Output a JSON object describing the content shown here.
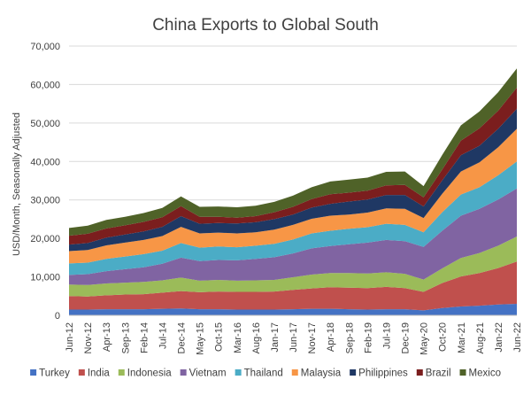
{
  "chart_data": {
    "type": "area",
    "stacked": true,
    "title": "China Exports to Global South",
    "xlabel": "",
    "ylabel": "USD/Month, Seasonally Adjusted",
    "ylim": [
      0,
      70000
    ],
    "yticks": [
      0,
      10000,
      20000,
      30000,
      40000,
      50000,
      60000,
      70000
    ],
    "ytick_labels": [
      "0",
      "10,000",
      "20,000",
      "30,000",
      "40,000",
      "50,000",
      "60,000",
      "70,000"
    ],
    "xtick_labels": [
      "Jun-12",
      "Nov-12",
      "Apr-13",
      "Sep-13",
      "Feb-14",
      "Jul-14",
      "Dec-14",
      "May-15",
      "Oct-15",
      "Mar-16",
      "Aug-16",
      "Jan-17",
      "Jun-17",
      "Nov-17",
      "Apr-18",
      "Sep-18",
      "Feb-19",
      "Jul-19",
      "Dec-19",
      "May-20",
      "Oct-20",
      "Mar-21",
      "Aug-21",
      "Jan-22",
      "Jun-22"
    ],
    "x": [
      "Jun-12",
      "Nov-12",
      "Apr-13",
      "Sep-13",
      "Feb-14",
      "Jul-14",
      "Dec-14",
      "May-15",
      "Oct-15",
      "Mar-16",
      "Aug-16",
      "Jan-17",
      "Jun-17",
      "Nov-17",
      "Apr-18",
      "Sep-18",
      "Feb-19",
      "Jul-19",
      "Dec-19",
      "May-20",
      "Oct-20",
      "Mar-21",
      "Aug-21",
      "Jan-22",
      "Jun-22"
    ],
    "legend_position": "bottom",
    "series": [
      {
        "name": "Turkey",
        "color": "#4472C4",
        "values": [
          1500,
          1500,
          1600,
          1600,
          1600,
          1700,
          1800,
          1600,
          1600,
          1500,
          1500,
          1500,
          1600,
          1700,
          1700,
          1600,
          1500,
          1600,
          1600,
          1300,
          1900,
          2300,
          2500,
          2800,
          3000
        ]
      },
      {
        "name": "India",
        "color": "#C0504D",
        "values": [
          3500,
          3400,
          3600,
          3800,
          3900,
          4200,
          4500,
          4400,
          4600,
          4600,
          4600,
          4700,
          5000,
          5300,
          5600,
          5600,
          5600,
          5800,
          5500,
          4800,
          6500,
          7800,
          8500,
          9500,
          11000
        ]
      },
      {
        "name": "Indonesia",
        "color": "#9BBB59",
        "values": [
          3000,
          3000,
          3100,
          3100,
          3200,
          3200,
          3500,
          3000,
          3000,
          2900,
          3000,
          3000,
          3300,
          3600,
          3700,
          3800,
          3800,
          3800,
          3700,
          3200,
          3800,
          4800,
          5200,
          5800,
          6500
        ]
      },
      {
        "name": "Vietnam",
        "color": "#8064A2",
        "values": [
          2500,
          2800,
          3200,
          3500,
          3800,
          4300,
          5200,
          5100,
          5200,
          5300,
          5600,
          5900,
          6200,
          6800,
          7000,
          7500,
          8000,
          8400,
          8500,
          8500,
          9800,
          11000,
          11500,
          12000,
          12500
        ]
      },
      {
        "name": "Thailand",
        "color": "#4BACC6",
        "values": [
          3000,
          3000,
          3200,
          3300,
          3400,
          3400,
          3800,
          3500,
          3500,
          3400,
          3400,
          3500,
          3600,
          3900,
          4000,
          4000,
          4000,
          4200,
          4200,
          3800,
          4800,
          5500,
          5600,
          6300,
          7000
        ]
      },
      {
        "name": "Malaysia",
        "color": "#F79646",
        "values": [
          3200,
          3300,
          3500,
          3600,
          3700,
          3800,
          4200,
          3700,
          3600,
          3600,
          3500,
          3700,
          3800,
          3800,
          3900,
          3700,
          3800,
          4000,
          4200,
          3700,
          4800,
          6000,
          6500,
          7300,
          8500
        ]
      },
      {
        "name": "Philippines",
        "color": "#1F3864",
        "values": [
          1700,
          1800,
          2000,
          2100,
          2200,
          2400,
          2800,
          2500,
          2500,
          2600,
          2600,
          2700,
          2700,
          2900,
          3100,
          3400,
          3400,
          3500,
          3600,
          3000,
          3500,
          4200,
          4300,
          4800,
          5200
        ]
      },
      {
        "name": "Brazil",
        "color": "#7B1E1E",
        "values": [
          2300,
          2400,
          2400,
          2400,
          2500,
          2500,
          2600,
          1800,
          1600,
          1500,
          1600,
          1800,
          2000,
          2200,
          2500,
          2300,
          2300,
          2500,
          2600,
          2400,
          2800,
          3800,
          4500,
          4700,
          5500
        ]
      },
      {
        "name": "Mexico",
        "color": "#4F6228",
        "values": [
          2000,
          2100,
          2200,
          2200,
          2300,
          2400,
          2500,
          2600,
          2700,
          2700,
          2700,
          2700,
          2900,
          3100,
          3300,
          3400,
          3400,
          3500,
          3500,
          2900,
          3800,
          4000,
          4400,
          4800,
          5000
        ]
      }
    ]
  }
}
